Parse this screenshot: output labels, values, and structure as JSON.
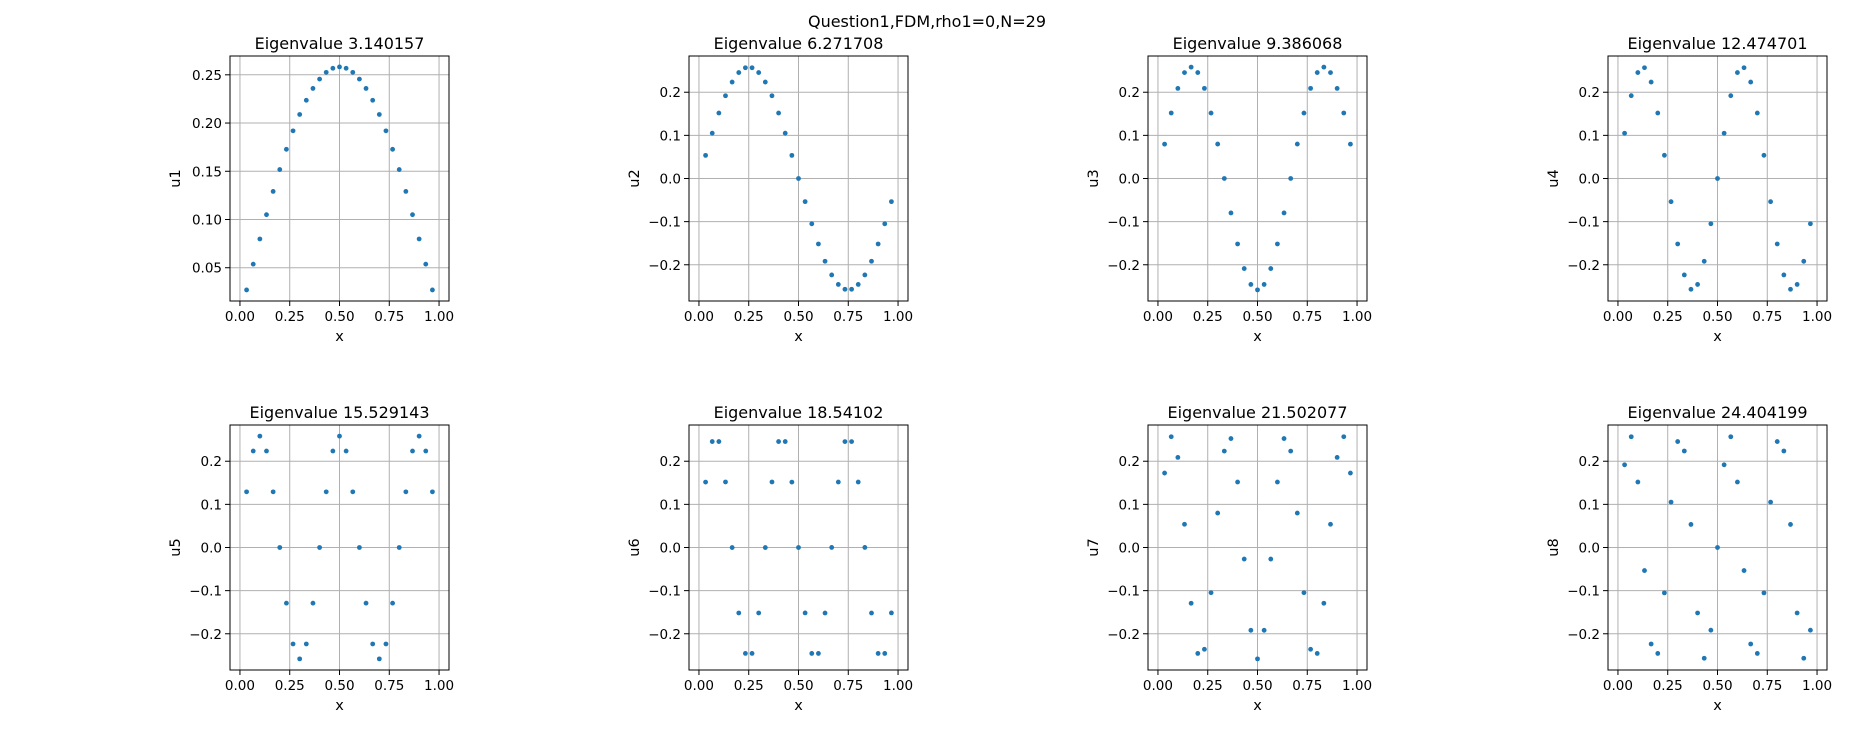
{
  "figure": {
    "suptitle": "Question1,FDM,rho1=0,N=29"
  },
  "chart_data": [
    {
      "type": "scatter",
      "title": "Eigenvalue 3.140157",
      "xlabel": "x",
      "ylabel": "u1",
      "xlim": [
        -0.05,
        1.05
      ],
      "ylim": [
        0.0155,
        0.2695
      ],
      "xticks": [
        0,
        0.25,
        0.5,
        0.75,
        1
      ],
      "xticklabels": [
        "0.00",
        "0.25",
        "0.50",
        "0.75",
        "1.00"
      ],
      "yticks": [
        0.05,
        0.1,
        0.15,
        0.2,
        0.25
      ],
      "yticklabels": [
        "0.05",
        "0.10",
        "0.15",
        "0.20",
        "0.25"
      ],
      "grid": true,
      "mode": 1,
      "amplitude": 0.2582,
      "color": "#1f77b4",
      "x": [
        0.0333,
        0.0667,
        0.1,
        0.1333,
        0.1667,
        0.2,
        0.2333,
        0.2667,
        0.3,
        0.3333,
        0.3667,
        0.4,
        0.4333,
        0.4667,
        0.5,
        0.5333,
        0.5667,
        0.6,
        0.6333,
        0.6667,
        0.7,
        0.7333,
        0.7667,
        0.8,
        0.8333,
        0.8667,
        0.9,
        0.9333,
        0.9667
      ]
    },
    {
      "type": "scatter",
      "title": "Eigenvalue 6.271708",
      "xlabel": "x",
      "ylabel": "u2",
      "xlim": [
        -0.05,
        1.05
      ],
      "ylim": [
        -0.284,
        0.284
      ],
      "xticks": [
        0,
        0.25,
        0.5,
        0.75,
        1
      ],
      "xticklabels": [
        "0.00",
        "0.25",
        "0.50",
        "0.75",
        "1.00"
      ],
      "yticks": [
        -0.2,
        -0.1,
        0,
        0.1,
        0.2
      ],
      "yticklabels": [
        "−0.2",
        "−0.1",
        "0.0",
        "0.1",
        "0.2"
      ],
      "grid": true,
      "mode": 2,
      "amplitude": 0.2582,
      "color": "#1f77b4",
      "x": [
        0.0333,
        0.0667,
        0.1,
        0.1333,
        0.1667,
        0.2,
        0.2333,
        0.2667,
        0.3,
        0.3333,
        0.3667,
        0.4,
        0.4333,
        0.4667,
        0.5,
        0.5333,
        0.5667,
        0.6,
        0.6333,
        0.6667,
        0.7,
        0.7333,
        0.7667,
        0.8,
        0.8333,
        0.8667,
        0.9,
        0.9333,
        0.9667
      ]
    },
    {
      "type": "scatter",
      "title": "Eigenvalue 9.386068",
      "xlabel": "x",
      "ylabel": "u3",
      "xlim": [
        -0.05,
        1.05
      ],
      "ylim": [
        -0.284,
        0.284
      ],
      "xticks": [
        0,
        0.25,
        0.5,
        0.75,
        1
      ],
      "xticklabels": [
        "0.00",
        "0.25",
        "0.50",
        "0.75",
        "1.00"
      ],
      "yticks": [
        -0.2,
        -0.1,
        0,
        0.1,
        0.2
      ],
      "yticklabels": [
        "−0.2",
        "−0.1",
        "0.0",
        "0.1",
        "0.2"
      ],
      "grid": true,
      "mode": 3,
      "amplitude": 0.2582,
      "color": "#1f77b4",
      "x": [
        0.0333,
        0.0667,
        0.1,
        0.1333,
        0.1667,
        0.2,
        0.2333,
        0.2667,
        0.3,
        0.3333,
        0.3667,
        0.4,
        0.4333,
        0.4667,
        0.5,
        0.5333,
        0.5667,
        0.6,
        0.6333,
        0.6667,
        0.7,
        0.7333,
        0.7667,
        0.8,
        0.8333,
        0.8667,
        0.9,
        0.9333,
        0.9667
      ]
    },
    {
      "type": "scatter",
      "title": "Eigenvalue 12.474701",
      "xlabel": "x",
      "ylabel": "u4",
      "xlim": [
        -0.05,
        1.05
      ],
      "ylim": [
        -0.284,
        0.284
      ],
      "xticks": [
        0,
        0.25,
        0.5,
        0.75,
        1
      ],
      "xticklabels": [
        "0.00",
        "0.25",
        "0.50",
        "0.75",
        "1.00"
      ],
      "yticks": [
        -0.2,
        -0.1,
        0,
        0.1,
        0.2
      ],
      "yticklabels": [
        "−0.2",
        "−0.1",
        "0.0",
        "0.1",
        "0.2"
      ],
      "grid": true,
      "mode": 4,
      "amplitude": 0.2582,
      "color": "#1f77b4",
      "x": [
        0.0333,
        0.0667,
        0.1,
        0.1333,
        0.1667,
        0.2,
        0.2333,
        0.2667,
        0.3,
        0.3333,
        0.3667,
        0.4,
        0.4333,
        0.4667,
        0.5,
        0.5333,
        0.5667,
        0.6,
        0.6333,
        0.6667,
        0.7,
        0.7333,
        0.7667,
        0.8,
        0.8333,
        0.8667,
        0.9,
        0.9333,
        0.9667
      ]
    },
    {
      "type": "scatter",
      "title": "Eigenvalue 15.529143",
      "xlabel": "x",
      "ylabel": "u5",
      "xlim": [
        -0.05,
        1.05
      ],
      "ylim": [
        -0.284,
        0.284
      ],
      "xticks": [
        0,
        0.25,
        0.5,
        0.75,
        1
      ],
      "xticklabels": [
        "0.00",
        "0.25",
        "0.50",
        "0.75",
        "1.00"
      ],
      "yticks": [
        -0.2,
        -0.1,
        0,
        0.1,
        0.2
      ],
      "yticklabels": [
        "−0.2",
        "−0.1",
        "0.0",
        "0.1",
        "0.2"
      ],
      "grid": true,
      "mode": 5,
      "amplitude": 0.2582,
      "color": "#1f77b4",
      "x": [
        0.0333,
        0.0667,
        0.1,
        0.1333,
        0.1667,
        0.2,
        0.2333,
        0.2667,
        0.3,
        0.3333,
        0.3667,
        0.4,
        0.4333,
        0.4667,
        0.5,
        0.5333,
        0.5667,
        0.6,
        0.6333,
        0.6667,
        0.7,
        0.7333,
        0.7667,
        0.8,
        0.8333,
        0.8667,
        0.9,
        0.9333,
        0.9667
      ]
    },
    {
      "type": "scatter",
      "title": "Eigenvalue 18.54102",
      "xlabel": "x",
      "ylabel": "u6",
      "xlim": [
        -0.05,
        1.05
      ],
      "ylim": [
        -0.284,
        0.284
      ],
      "xticks": [
        0,
        0.25,
        0.5,
        0.75,
        1
      ],
      "xticklabels": [
        "0.00",
        "0.25",
        "0.50",
        "0.75",
        "1.00"
      ],
      "yticks": [
        -0.2,
        -0.1,
        0,
        0.1,
        0.2
      ],
      "yticklabels": [
        "−0.2",
        "−0.1",
        "0.0",
        "0.1",
        "0.2"
      ],
      "grid": true,
      "mode": 6,
      "amplitude": 0.2582,
      "color": "#1f77b4",
      "x": [
        0.0333,
        0.0667,
        0.1,
        0.1333,
        0.1667,
        0.2,
        0.2333,
        0.2667,
        0.3,
        0.3333,
        0.3667,
        0.4,
        0.4333,
        0.4667,
        0.5,
        0.5333,
        0.5667,
        0.6,
        0.6333,
        0.6667,
        0.7,
        0.7333,
        0.7667,
        0.8,
        0.8333,
        0.8667,
        0.9,
        0.9333,
        0.9667
      ]
    },
    {
      "type": "scatter",
      "title": "Eigenvalue 21.502077",
      "xlabel": "x",
      "ylabel": "u7",
      "xlim": [
        -0.05,
        1.05
      ],
      "ylim": [
        -0.284,
        0.284
      ],
      "xticks": [
        0,
        0.25,
        0.5,
        0.75,
        1
      ],
      "xticklabels": [
        "0.00",
        "0.25",
        "0.50",
        "0.75",
        "1.00"
      ],
      "yticks": [
        -0.2,
        -0.1,
        0,
        0.1,
        0.2
      ],
      "yticklabels": [
        "−0.2",
        "−0.1",
        "0.0",
        "0.1",
        "0.2"
      ],
      "grid": true,
      "mode": 7,
      "amplitude": 0.2582,
      "color": "#1f77b4",
      "x": [
        0.0333,
        0.0667,
        0.1,
        0.1333,
        0.1667,
        0.2,
        0.2333,
        0.2667,
        0.3,
        0.3333,
        0.3667,
        0.4,
        0.4333,
        0.4667,
        0.5,
        0.5333,
        0.5667,
        0.6,
        0.6333,
        0.6667,
        0.7,
        0.7333,
        0.7667,
        0.8,
        0.8333,
        0.8667,
        0.9,
        0.9333,
        0.9667
      ]
    },
    {
      "type": "scatter",
      "title": "Eigenvalue 24.404199",
      "xlabel": "x",
      "ylabel": "u8",
      "xlim": [
        -0.05,
        1.05
      ],
      "ylim": [
        -0.284,
        0.284
      ],
      "xticks": [
        0,
        0.25,
        0.5,
        0.75,
        1
      ],
      "xticklabels": [
        "0.00",
        "0.25",
        "0.50",
        "0.75",
        "1.00"
      ],
      "yticks": [
        -0.2,
        -0.1,
        0,
        0.1,
        0.2
      ],
      "yticklabels": [
        "−0.2",
        "−0.1",
        "0.0",
        "0.1",
        "0.2"
      ],
      "grid": true,
      "mode": 8,
      "amplitude": 0.2582,
      "color": "#1f77b4",
      "x": [
        0.0333,
        0.0667,
        0.1,
        0.1333,
        0.1667,
        0.2,
        0.2333,
        0.2667,
        0.3,
        0.3333,
        0.3667,
        0.4,
        0.4333,
        0.4667,
        0.5,
        0.5333,
        0.5667,
        0.6,
        0.6333,
        0.6667,
        0.7,
        0.7333,
        0.7667,
        0.8,
        0.8333,
        0.8667,
        0.9,
        0.9333,
        0.9667
      ]
    }
  ]
}
